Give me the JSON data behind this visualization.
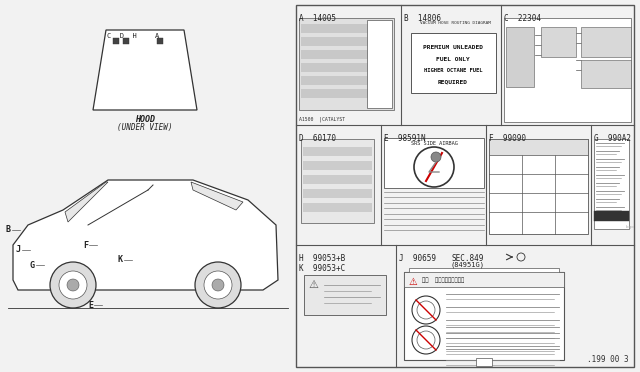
{
  "bg_color": "#f2f2f2",
  "border_color": "#444444",
  "panel_bg": "#ffffff",
  "text_color": "#222222",
  "label_A": "A  14005",
  "label_B": "B  14806",
  "label_C": "C  22304",
  "label_D": "D  60170",
  "label_E": "E  98591N",
  "label_F": "F  99090",
  "label_G": "G  990A2",
  "label_H": "H  99053+B",
  "label_K": "K  99053+C",
  "label_J1": "J  90659",
  "label_J2": "SEC.849",
  "label_J3": "(84951G)",
  "page_ref": ".199 00 3",
  "fuel_line1": "PREMIUM UNLEADED",
  "fuel_line2": "FUEL ONLY",
  "fuel_line3": "HIGHER OCTANE FUEL",
  "fuel_line4": "REQUIRED",
  "vacuum_title": "VACUUM HOSE ROUTING DIAGRAM",
  "srs_text": "SRS SIDE AIRBAG",
  "catalyst_text": "A1500  |CATALYST",
  "hood_text1": "HOOD",
  "hood_text2": "(UNDER VIEW)"
}
